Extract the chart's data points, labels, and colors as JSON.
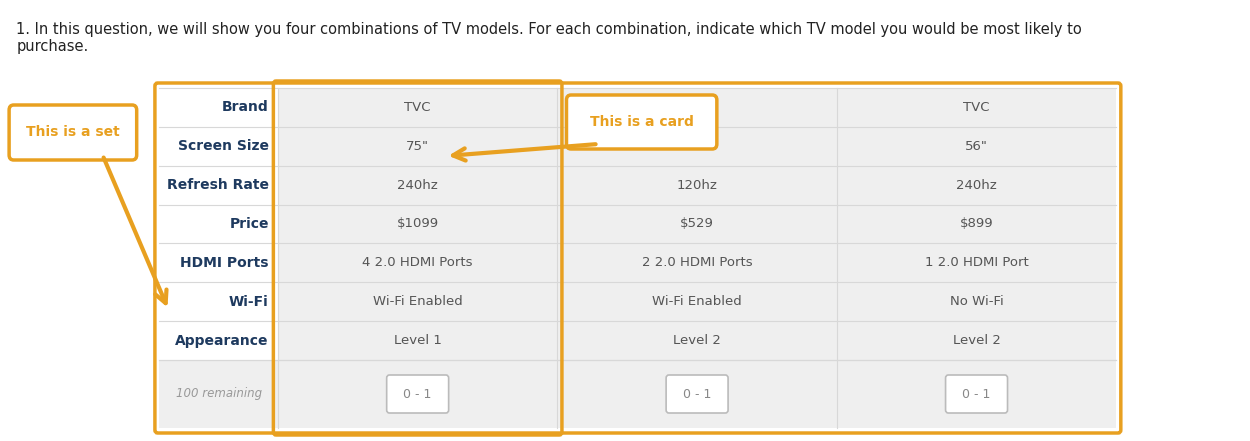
{
  "title_text": "1. In this question, we will show you four combinations of TV models. For each combination, indicate which TV model you would be most likely to\npurchase.",
  "title_fontsize": 10.5,
  "title_color": "#222222",
  "bg_color": "#ffffff",
  "row_labels": [
    "Brand",
    "Screen Size",
    "Refresh Rate",
    "Price",
    "HDMI Ports",
    "Wi-Fi",
    "Appearance"
  ],
  "col1": [
    "TVC",
    "75\"",
    "240hz",
    "$1099",
    "4 2.0 HDMI Ports",
    "Wi-Fi Enabled",
    "Level 1"
  ],
  "col2": [
    "",
    "",
    "120hz",
    "$529",
    "2 2.0 HDMI Ports",
    "Wi-Fi Enabled",
    "Level 2"
  ],
  "col3": [
    "TVC",
    "56\"",
    "240hz",
    "$899",
    "1 2.0 HDMI Port",
    "No Wi-Fi",
    "Level 2"
  ],
  "remaining_text": "100 remaining",
  "input_text": "0 - 1",
  "set_label_text": "This is a set",
  "card_label_text": "This is a card",
  "orange": "#E8A020",
  "dark_blue": "#1e3a5f",
  "gray_text": "#999999",
  "cell_font_color": "#555555",
  "table_bg": "#efefef",
  "label_bg": "#ffffff",
  "row_sep_color": "#d8d8d8"
}
